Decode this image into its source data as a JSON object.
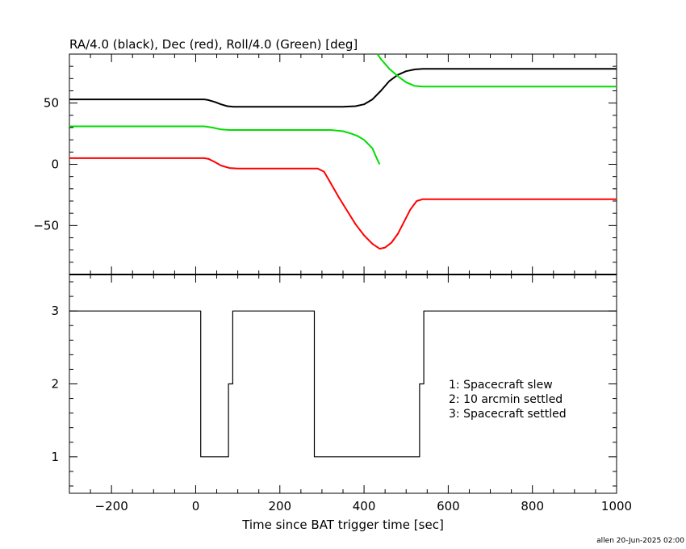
{
  "chart_data": [
    {
      "type": "line",
      "title": "RA/4.0 (black), Dec (red), Roll/4.0 (Green) [deg]",
      "xlabel": "",
      "ylabel": "",
      "xlim": [
        -300,
        1000
      ],
      "ylim": [
        -90,
        90
      ],
      "grid": false,
      "y_ticks": [
        {
          "value": 50,
          "label": "50"
        },
        {
          "value": 0,
          "label": "0"
        },
        {
          "value": -50,
          "label": "−50"
        }
      ],
      "series": [
        {
          "color": "#000000",
          "points": [
            [
              -300,
              53
            ],
            [
              20,
              53
            ],
            [
              30,
              52.5
            ],
            [
              45,
              51
            ],
            [
              60,
              49
            ],
            [
              75,
              47.5
            ],
            [
              90,
              47
            ],
            [
              290,
              47
            ],
            [
              350,
              47
            ],
            [
              380,
              47.5
            ],
            [
              400,
              49
            ],
            [
              420,
              53
            ],
            [
              440,
              60
            ],
            [
              460,
              68
            ],
            [
              480,
              73
            ],
            [
              500,
              76
            ],
            [
              520,
              77.5
            ],
            [
              540,
              78
            ],
            [
              1000,
              78
            ]
          ]
        },
        {
          "color": "#00dd00",
          "points": [
            [
              -300,
              31
            ],
            [
              20,
              31
            ],
            [
              40,
              30
            ],
            [
              60,
              28.5
            ],
            [
              80,
              28
            ],
            [
              290,
              28
            ],
            [
              320,
              28
            ],
            [
              350,
              27
            ],
            [
              370,
              25
            ],
            [
              385,
              23
            ],
            [
              400,
              20
            ],
            [
              420,
              13
            ],
            [
              430,
              5
            ],
            [
              437,
              0
            ]
          ]
        },
        {
          "color": "#00dd00",
          "points": [
            [
              432,
              90
            ],
            [
              440,
              86
            ],
            [
              460,
              78
            ],
            [
              480,
              72
            ],
            [
              500,
              67
            ],
            [
              520,
              64
            ],
            [
              540,
              63.5
            ],
            [
              1000,
              63.5
            ]
          ]
        },
        {
          "color": "#ff0000",
          "points": [
            [
              -300,
              5
            ],
            [
              20,
              5
            ],
            [
              30,
              4.5
            ],
            [
              45,
              2
            ],
            [
              60,
              -1
            ],
            [
              80,
              -3
            ],
            [
              100,
              -3.5
            ],
            [
              290,
              -3.5
            ],
            [
              305,
              -6
            ],
            [
              320,
              -15
            ],
            [
              340,
              -27
            ],
            [
              360,
              -38
            ],
            [
              380,
              -49
            ],
            [
              400,
              -58
            ],
            [
              420,
              -65
            ],
            [
              437,
              -69
            ],
            [
              450,
              -68
            ],
            [
              465,
              -64
            ],
            [
              480,
              -57
            ],
            [
              495,
              -47
            ],
            [
              510,
              -37
            ],
            [
              525,
              -30
            ],
            [
              540,
              -28.5
            ],
            [
              1000,
              -28.5
            ]
          ]
        }
      ]
    },
    {
      "type": "line",
      "title": "",
      "xlabel": "Time since BAT trigger time [sec]",
      "ylabel": "",
      "xlim": [
        -300,
        1000
      ],
      "ylim": [
        0.5,
        3.5
      ],
      "grid": false,
      "x_ticks": [
        {
          "value": -200,
          "label": "−200"
        },
        {
          "value": 0,
          "label": "0"
        },
        {
          "value": 200,
          "label": "200"
        },
        {
          "value": 400,
          "label": "400"
        },
        {
          "value": 600,
          "label": "600"
        },
        {
          "value": 800,
          "label": "800"
        },
        {
          "value": 1000,
          "label": "1000"
        }
      ],
      "y_ticks": [
        {
          "value": 3,
          "label": "3"
        },
        {
          "value": 2,
          "label": "2"
        },
        {
          "value": 1,
          "label": "1"
        }
      ],
      "annotations": [
        "1: Spacecraft slew",
        "2: 10 arcmin settled",
        "3: Spacecraft settled"
      ],
      "series": [
        {
          "color": "#000000",
          "step": true,
          "points": [
            [
              -300,
              3
            ],
            [
              12,
              3
            ],
            [
              12,
              1
            ],
            [
              78,
              1
            ],
            [
              78,
              2
            ],
            [
              88,
              2
            ],
            [
              88,
              3
            ],
            [
              282,
              3
            ],
            [
              282,
              1
            ],
            [
              532,
              1
            ],
            [
              532,
              2
            ],
            [
              542,
              2
            ],
            [
              542,
              3
            ],
            [
              1000,
              3
            ]
          ]
        }
      ]
    }
  ],
  "footer": {
    "stamp": "allen 20-Jun-2025 02:00"
  }
}
